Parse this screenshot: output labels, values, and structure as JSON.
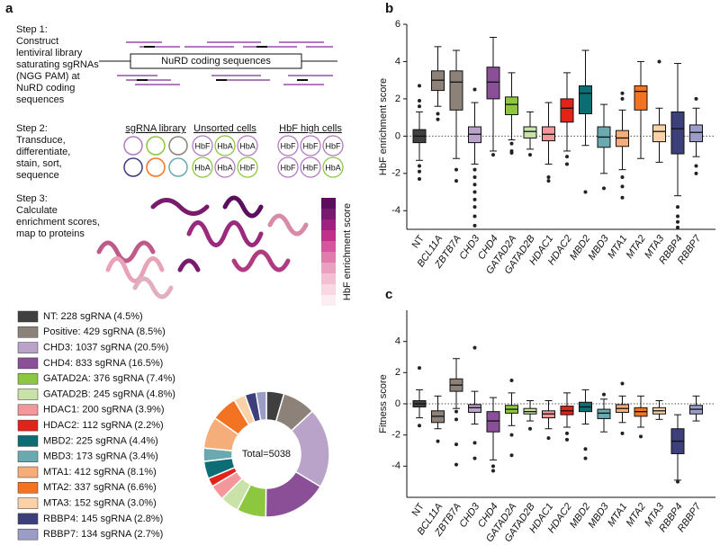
{
  "panel_a": {
    "label": "a",
    "step1": {
      "title": "Step 1:",
      "lines": [
        "Construct",
        "lentiviral library",
        "saturating sgRNAs",
        "(NGG PAM) at",
        "NuRD coding",
        "sequences"
      ]
    },
    "coding_box": "NuRD coding sequences",
    "step2": {
      "title": "Step 2:",
      "lines": [
        "Transduce,",
        "differentiate,",
        "stain, sort,",
        "sequence"
      ]
    },
    "groups": [
      {
        "title": "sgRNA library"
      },
      {
        "title": "Unsorted cells",
        "cells": [
          "HbF",
          "HbA",
          "HbA",
          "HbA",
          "HbA",
          "HbF"
        ]
      },
      {
        "title": "HbF high cells",
        "cells": [
          "HbF",
          "HbF",
          "HbF",
          "HbF",
          "HbF",
          "HbA"
        ]
      }
    ],
    "step3": {
      "title": "Step 3:",
      "lines": [
        "Calculate",
        "enrichment scores,",
        "map to proteins"
      ]
    },
    "colorbar_label": "HbF enrichment score"
  },
  "chart_data": [
    {
      "type": "pie",
      "donut": true,
      "center_label": "Total=5038",
      "categories": [
        "NT: 228 sgRNA (4.5%)",
        "Positive: 429 sgRNA (8.5%)",
        "CHD3: 1037 sgRNA (20.5%)",
        "CHD4: 833 sgRNA (16.5%)",
        "GATAD2A: 376 sgRNA (7.4%)",
        "GATAD2B: 245 sgRNA (4.8%)",
        "HDAC1: 200 sgRNA (3.9%)",
        "HDAC2: 112 sgRNA (2.2%)",
        "MBD2: 225 sgRNA (4.4%)",
        "MBD3: 173 sgRNA (3.4%)",
        "MTA1: 412 sgRNA (8.1%)",
        "MTA2: 337 sgRNA (6.6%)",
        "MTA3: 152 sgRNA (3.0%)",
        "RBBP4: 145 sgRNA (2.8%)",
        "RBBP7: 134 sgRNA (2.7%)"
      ],
      "values": [
        228,
        429,
        1037,
        833,
        376,
        245,
        200,
        112,
        225,
        173,
        412,
        337,
        152,
        145,
        134
      ],
      "colors": [
        "#3f3f3f",
        "#8c827a",
        "#b9a3c9",
        "#8a4f96",
        "#8dc63f",
        "#c8e2a8",
        "#f4979a",
        "#e2231a",
        "#0c6d74",
        "#6aa9b0",
        "#f5ae7a",
        "#f27322",
        "#fbd2a8",
        "#3c3f7a",
        "#9b9dc6"
      ]
    },
    {
      "type": "box",
      "panel_label": "b",
      "ylabel": "HbF enrichment score",
      "zero_line": true,
      "categories": [
        "NT",
        "BCL11A",
        "ZBTB7A",
        "CHD3",
        "CHD4",
        "GATAD2A",
        "GATAD2B",
        "HDAC1",
        "HDAC2",
        "MBD2",
        "MBD3",
        "MTA1",
        "MTA2",
        "MTA3",
        "RBBP4",
        "RBBP7"
      ],
      "colors": [
        "#3f3f3f",
        "#8c827a",
        "#8c827a",
        "#b9a3c9",
        "#8a4f96",
        "#8dc63f",
        "#c8e2a8",
        "#f4979a",
        "#e2231a",
        "#0c6d74",
        "#6aa9b0",
        "#f5ae7a",
        "#f27322",
        "#fbd2a8",
        "#3c3f7a",
        "#9b9dc6"
      ],
      "stats": [
        {
          "whislo": -1.3,
          "q1": -0.35,
          "med": 0,
          "q3": 0.35,
          "whishi": 1.3,
          "fliers": [
            2.7,
            1.9,
            1.6,
            -1.6,
            -1.9,
            -2.3
          ]
        },
        {
          "whislo": 1.6,
          "q1": 2.45,
          "med": 3.0,
          "q3": 3.5,
          "whishi": 4.8,
          "fliers": [
            1.2,
            0.9
          ]
        },
        {
          "whislo": -1.2,
          "q1": 1.4,
          "med": 2.9,
          "q3": 3.5,
          "whishi": 4.6,
          "fliers": [
            -1.8,
            -2.4
          ]
        },
        {
          "whislo": -1.5,
          "q1": -0.35,
          "med": 0.1,
          "q3": 0.5,
          "whishi": 1.8,
          "fliers": [
            2.5,
            -1.8,
            -2.2,
            -2.6,
            -3.0,
            -3.4,
            -3.8,
            -4.3,
            -4.8
          ]
        },
        {
          "whislo": -0.8,
          "q1": 2.0,
          "med": 2.9,
          "q3": 3.7,
          "whishi": 5.3,
          "fliers": [
            -1.0
          ]
        },
        {
          "whislo": -0.2,
          "q1": 1.15,
          "med": 1.7,
          "q3": 2.1,
          "whishi": 3.4,
          "fliers": [
            -0.4,
            -0.8,
            -0.9
          ]
        },
        {
          "whislo": -0.7,
          "q1": -0.1,
          "med": 0.25,
          "q3": 0.5,
          "whishi": 1.3,
          "fliers": [
            -1.0
          ]
        },
        {
          "whislo": -1.5,
          "q1": -0.25,
          "med": 0.1,
          "q3": 0.5,
          "whishi": 1.8,
          "fliers": [
            -2.2,
            -2.4
          ]
        },
        {
          "whislo": -0.8,
          "q1": 0.75,
          "med": 1.5,
          "q3": 2.0,
          "whishi": 3.4,
          "fliers": [
            -1.1,
            -1.5
          ]
        },
        {
          "whislo": -0.5,
          "q1": 1.2,
          "med": 2.3,
          "q3": 2.7,
          "whishi": 4.6,
          "fliers": [
            -3.0
          ]
        },
        {
          "whislo": -2.0,
          "q1": -0.6,
          "med": -0.05,
          "q3": 0.5,
          "whishi": 1.7,
          "fliers": [
            -2.8
          ]
        },
        {
          "whislo": -1.8,
          "q1": -0.55,
          "med": -0.1,
          "q3": 0.3,
          "whishi": 1.4,
          "fliers": [
            2.3,
            2.0,
            -2.2,
            -2.7,
            -3.3
          ]
        },
        {
          "whislo": -1.2,
          "q1": 1.4,
          "med": 2.4,
          "q3": 2.7,
          "whishi": 4.0,
          "fliers": []
        },
        {
          "whislo": -1.4,
          "q1": -0.3,
          "med": 0.25,
          "q3": 0.6,
          "whishi": 1.5,
          "fliers": [
            4.0
          ]
        },
        {
          "whislo": -3.2,
          "q1": -0.95,
          "med": 0.4,
          "q3": 1.3,
          "whishi": 3.9,
          "fliers": [
            -3.8,
            -4.3,
            -4.6,
            -4.9
          ]
        },
        {
          "whislo": -1.1,
          "q1": -0.3,
          "med": 0.2,
          "q3": 0.6,
          "whishi": 1.5,
          "fliers": [
            2.0,
            -1.6,
            -2.0
          ]
        }
      ],
      "ylim": [
        -5,
        6
      ],
      "yticks": [
        -4,
        -2,
        0,
        2,
        4,
        6
      ]
    },
    {
      "type": "box",
      "panel_label": "c",
      "ylabel": "Fitness score",
      "zero_line": true,
      "categories": [
        "NT",
        "BCL11A",
        "ZBTB7A",
        "CHD3",
        "CHD4",
        "GATAD2A",
        "GATAD2B",
        "HDAC1",
        "HDAC2",
        "MBD2",
        "MBD3",
        "MTA1",
        "MTA2",
        "MTA3",
        "RBBP4",
        "RBBP7"
      ],
      "colors": [
        "#3f3f3f",
        "#8c827a",
        "#8c827a",
        "#b9a3c9",
        "#8a4f96",
        "#8dc63f",
        "#c8e2a8",
        "#f4979a",
        "#e2231a",
        "#0c6d74",
        "#6aa9b0",
        "#f5ae7a",
        "#f27322",
        "#fbd2a8",
        "#3c3f7a",
        "#9b9dc6"
      ],
      "stats": [
        {
          "whislo": -0.9,
          "q1": -0.2,
          "med": 0,
          "q3": 0.2,
          "whishi": 0.9,
          "fliers": [
            2.3,
            -1.4
          ]
        },
        {
          "whislo": -1.6,
          "q1": -1.2,
          "med": -0.8,
          "q3": -0.45,
          "whishi": 0.5,
          "fliers": [
            -2.4
          ]
        },
        {
          "whislo": -0.3,
          "q1": 0.8,
          "med": 1.2,
          "q3": 1.6,
          "whishi": 2.9,
          "fliers": [
            -0.5,
            -1.0,
            -2.6,
            -3.9
          ]
        },
        {
          "whislo": -1.3,
          "q1": -0.55,
          "med": -0.25,
          "q3": -0.05,
          "whishi": 0.8,
          "fliers": [
            3.6,
            -2.5,
            -3.5
          ]
        },
        {
          "whislo": -3.6,
          "q1": -1.8,
          "med": -1.1,
          "q3": -0.5,
          "whishi": 0.4,
          "fliers": [
            -4.0,
            -4.3
          ]
        },
        {
          "whislo": -1.4,
          "q1": -0.6,
          "med": -0.35,
          "q3": -0.1,
          "whishi": 0.7,
          "fliers": [
            1.5,
            -2.0,
            -3.3
          ]
        },
        {
          "whislo": -1.1,
          "q1": -0.65,
          "med": -0.5,
          "q3": -0.3,
          "whishi": 0.2,
          "fliers": [
            -1.6
          ]
        },
        {
          "whislo": -1.6,
          "q1": -0.9,
          "med": -0.65,
          "q3": -0.45,
          "whishi": 0.2,
          "fliers": [
            -2.2
          ]
        },
        {
          "whislo": -1.5,
          "q1": -0.7,
          "med": -0.45,
          "q3": -0.15,
          "whishi": 0.7,
          "fliers": [
            -1.9,
            -2.3
          ]
        },
        {
          "whislo": -1.3,
          "q1": -0.5,
          "med": -0.2,
          "q3": 0.1,
          "whishi": 0.9,
          "fliers": [
            -2.9,
            -3.5
          ]
        },
        {
          "whislo": -1.8,
          "q1": -0.95,
          "med": -0.6,
          "q3": -0.35,
          "whishi": 0.3,
          "fliers": [
            0.6
          ]
        },
        {
          "whislo": -1.2,
          "q1": -0.55,
          "med": -0.3,
          "q3": -0.05,
          "whishi": 0.5,
          "fliers": [
            1.3,
            -1.9
          ]
        },
        {
          "whislo": -1.5,
          "q1": -0.8,
          "med": -0.5,
          "q3": -0.25,
          "whishi": 0.5,
          "fliers": [
            -2.1
          ]
        },
        {
          "whislo": -1.0,
          "q1": -0.65,
          "med": -0.45,
          "q3": -0.25,
          "whishi": 0.2,
          "fliers": []
        },
        {
          "whislo": -4.9,
          "q1": -3.2,
          "med": -2.4,
          "q3": -1.6,
          "whishi": -0.7,
          "fliers": [
            -5.0
          ]
        },
        {
          "whislo": -1.1,
          "q1": -0.65,
          "med": -0.35,
          "q3": -0.1,
          "whishi": 0.5,
          "fliers": []
        }
      ],
      "ylim": [
        -6,
        6
      ],
      "yticks": [
        -4,
        -2,
        0,
        2,
        4
      ]
    }
  ]
}
